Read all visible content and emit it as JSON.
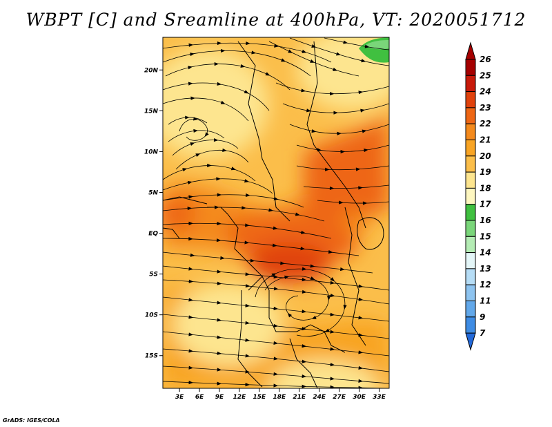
{
  "title": "WBPT [C] and Sreamline at 400hPa, VT: 2020051712",
  "credit": "GrADS: IGES/COLA",
  "map": {
    "lat_labels": [
      "20N",
      "15N",
      "10N",
      "5N",
      "EQ",
      "5S",
      "10S",
      "15S"
    ],
    "lon_labels": [
      "3E",
      "6E",
      "9E",
      "12E",
      "15E",
      "18E",
      "21E",
      "24E",
      "27E",
      "30E",
      "33E"
    ],
    "lat_range": [
      -19,
      24
    ],
    "lon_range": [
      0.5,
      34.5
    ]
  },
  "colorbar": {
    "labels": [
      "26",
      "25",
      "24",
      "23",
      "22",
      "21",
      "20",
      "19",
      "18",
      "17",
      "16",
      "15",
      "14",
      "13",
      "12",
      "11",
      "9",
      "7"
    ],
    "colors": {
      "c26": "#a50000",
      "c25": "#c81a0a",
      "c24": "#e0420c",
      "c23": "#ee6614",
      "c22": "#f48a1c",
      "c21": "#f8a424",
      "c20": "#fbbe4a",
      "c19": "#fde58f",
      "c18": "#fef7c0",
      "c17": "#40c040",
      "c16": "#7ad67a",
      "c15": "#b4ecb4",
      "c14": "#e4f6f8",
      "c13": "#b6ddf6",
      "c12": "#8ec4f0",
      "c11": "#62a8ea",
      "c9": "#3e8ce4",
      "c7": "#2268d8"
    }
  }
}
